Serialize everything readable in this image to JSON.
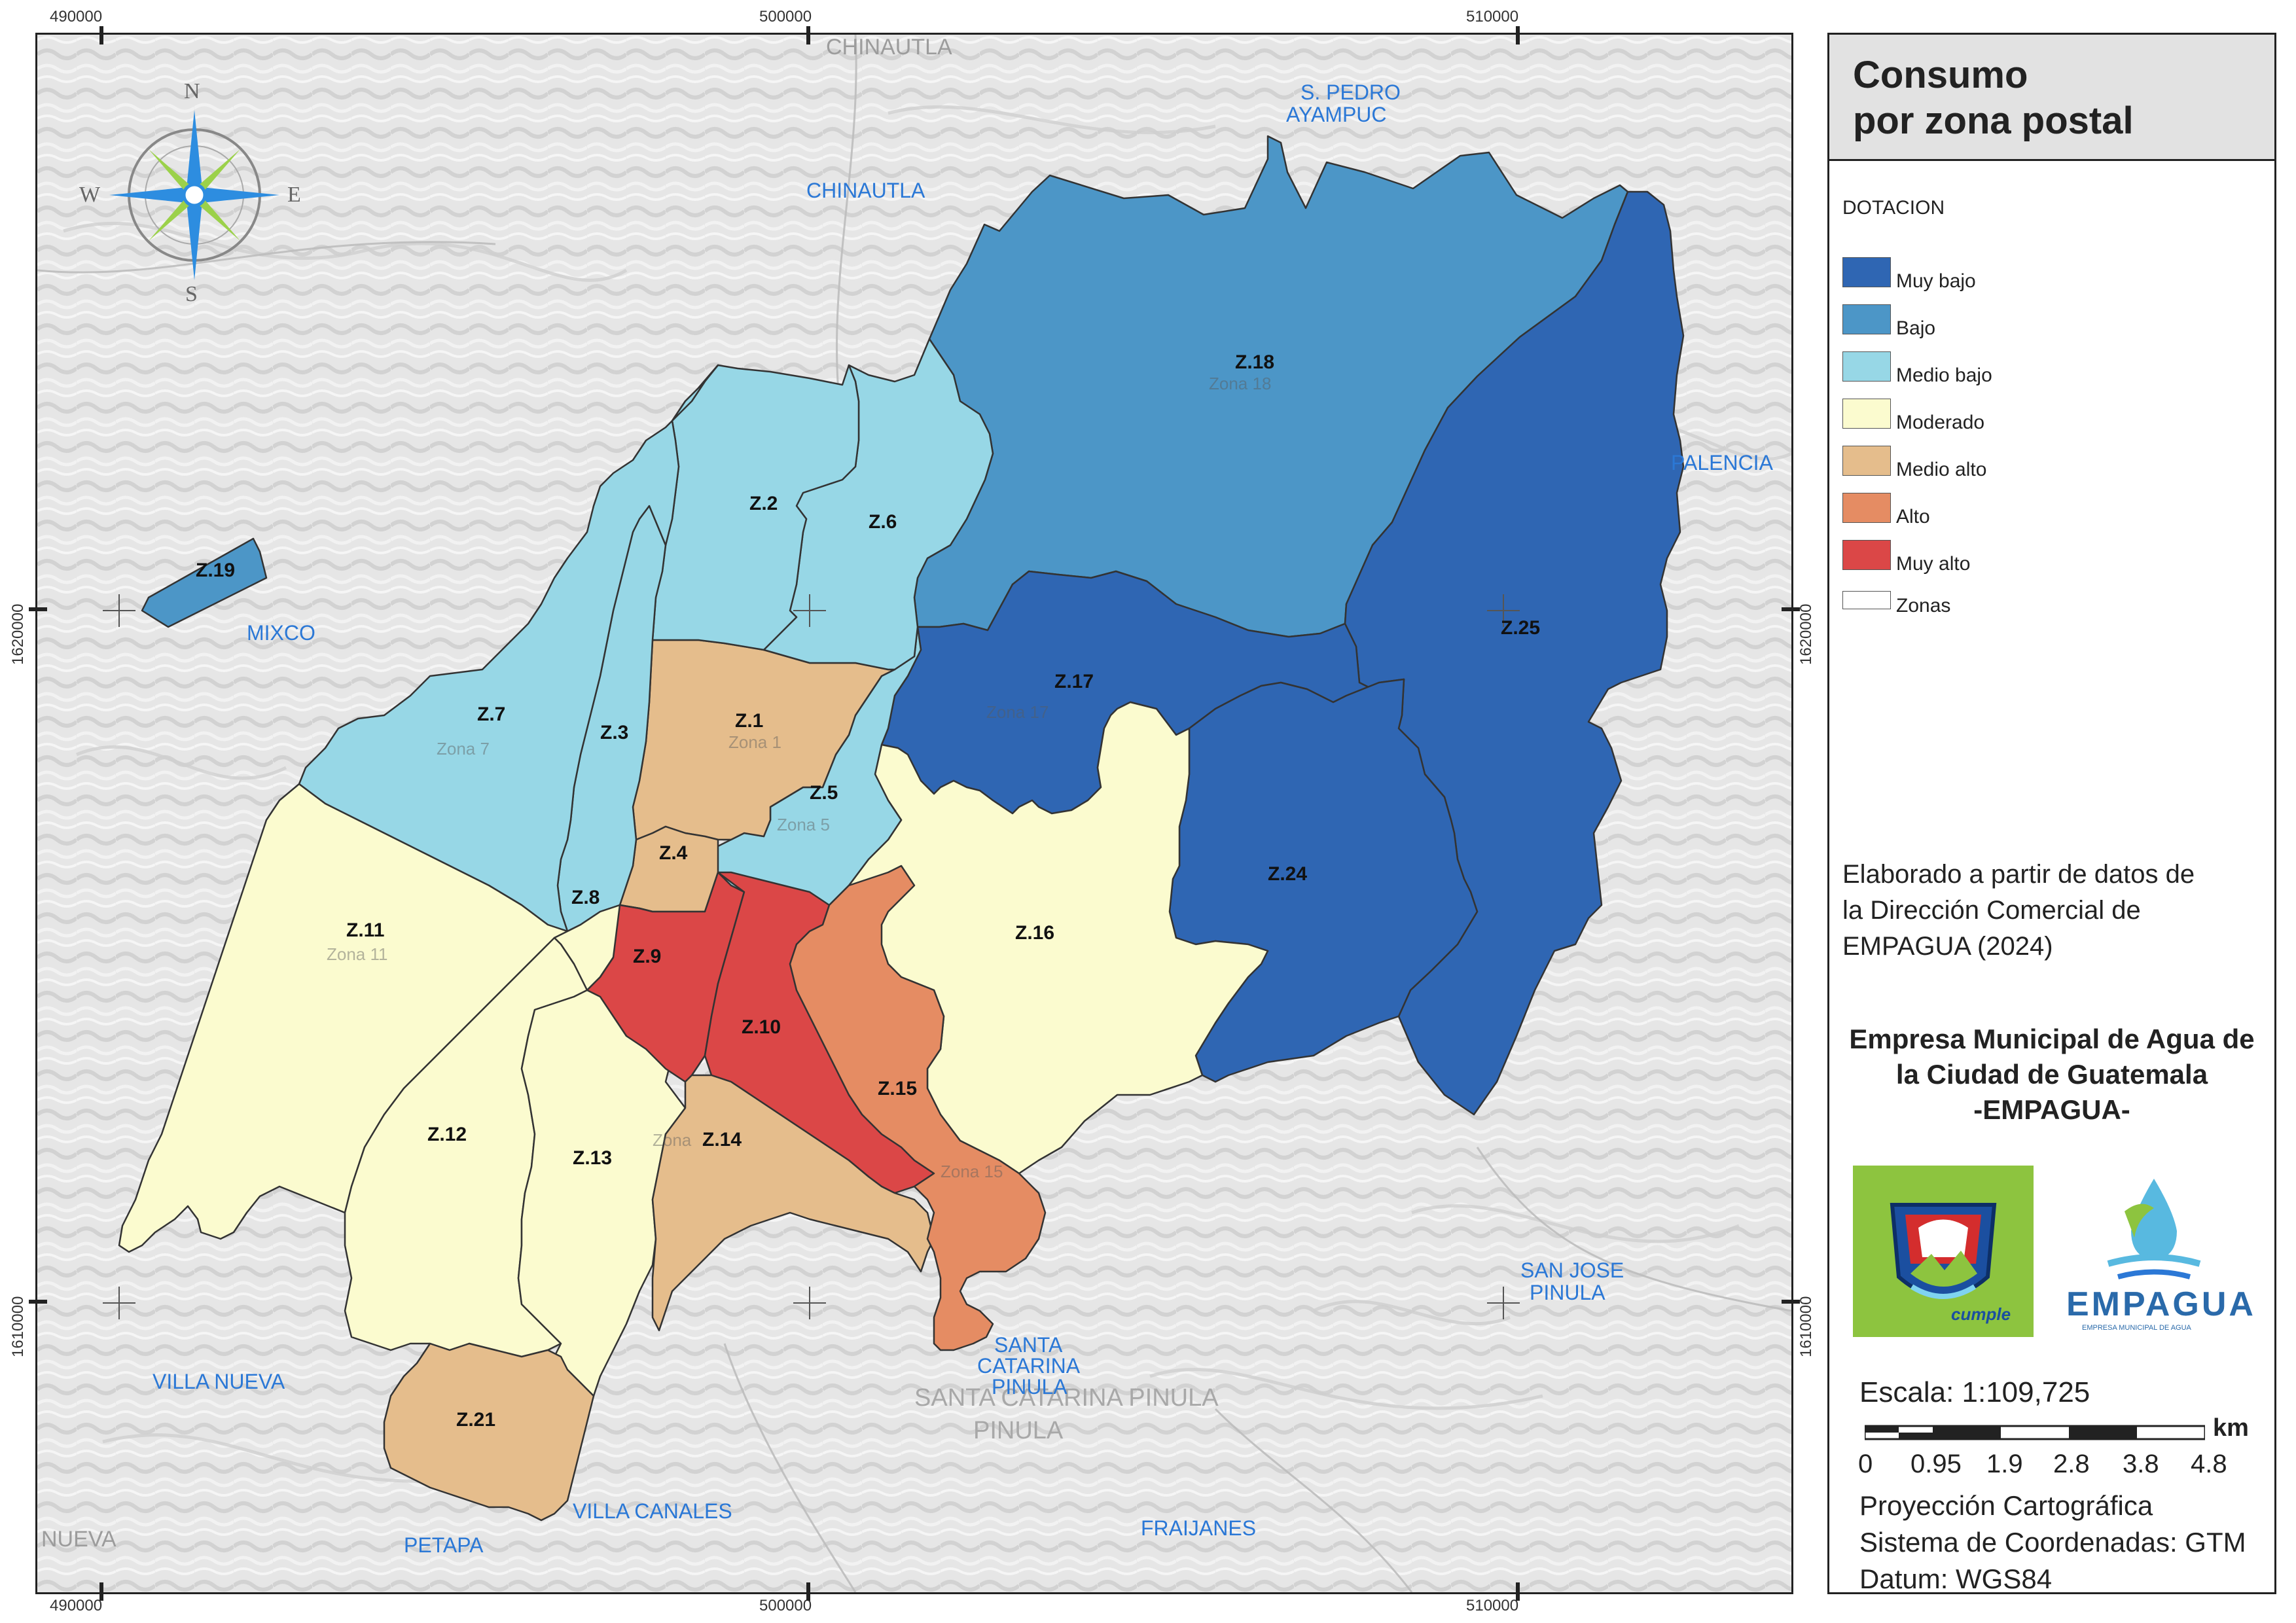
{
  "map": {
    "coords_top": [
      "490000",
      "500000",
      "510000"
    ],
    "coords_bottom": [
      "490000",
      "500000",
      "510000"
    ],
    "coords_left": [
      "1620000",
      "1610000"
    ],
    "coords_right": [
      "1620000",
      "1610000"
    ],
    "compass": [
      "N",
      "E",
      "S",
      "W"
    ],
    "zones": [
      {
        "label": "Z.1",
        "ghost": "Zona 1",
        "class": "Medio alto"
      },
      {
        "label": "Z.2",
        "ghost": "",
        "class": "Medio bajo"
      },
      {
        "label": "Z.3",
        "ghost": "",
        "class": "Medio bajo"
      },
      {
        "label": "Z.4",
        "ghost": "",
        "class": "Medio alto"
      },
      {
        "label": "Z.5",
        "ghost": "Zona 5",
        "class": "Medio bajo"
      },
      {
        "label": "Z.6",
        "ghost": "",
        "class": "Medio bajo"
      },
      {
        "label": "Z.7",
        "ghost": "Zona 7",
        "class": "Medio bajo"
      },
      {
        "label": "Z.8",
        "ghost": "",
        "class": "Moderado"
      },
      {
        "label": "Z.9",
        "ghost": "",
        "class": "Muy alto"
      },
      {
        "label": "Z.10",
        "ghost": "",
        "class": "Muy alto"
      },
      {
        "label": "Z.11",
        "ghost": "Zona 11",
        "class": "Moderado"
      },
      {
        "label": "Z.12",
        "ghost": "",
        "class": "Moderado"
      },
      {
        "label": "Z.13",
        "ghost": "",
        "class": "Moderado"
      },
      {
        "label": "Z.14",
        "ghost": "Zona",
        "class": "Medio alto"
      },
      {
        "label": "Z.15",
        "ghost": "Zona 15",
        "class": "Alto"
      },
      {
        "label": "Z.16",
        "ghost": "",
        "class": "Moderado"
      },
      {
        "label": "Z.17",
        "ghost": "Zona 17",
        "class": "Muy bajo"
      },
      {
        "label": "Z.18",
        "ghost": "Zona 18",
        "class": "Bajo"
      },
      {
        "label": "Z.19",
        "ghost": "",
        "class": "Bajo"
      },
      {
        "label": "Z.21",
        "ghost": "",
        "class": "Medio alto"
      },
      {
        "label": "Z.24",
        "ghost": "",
        "class": "Muy bajo"
      },
      {
        "label": "Z.25",
        "ghost": "",
        "class": "Muy bajo"
      }
    ],
    "places": {
      "chinautla_top": "CHINAUTLA",
      "chinautla": "CHINAUTLA",
      "san_pedro": [
        "S. PEDRO",
        "AYAMPUC"
      ],
      "palencia": "PALENCIA",
      "mixco": "MIXCO",
      "villa_nueva": "VILLA NUEVA",
      "nueva_edge": "NUEVA",
      "petapa": "PETAPA",
      "villa_canales": "VILLA CANALES",
      "fraijanes": "FRAIJANES",
      "santa_catarina": [
        "SANTA",
        "CATARINA",
        "PINULA"
      ],
      "santa_catarina_ghost": [
        "SANTA CATARINA PINULA",
        "PINULA"
      ],
      "san_jose": [
        "SAN JOSE",
        "PINULA"
      ]
    }
  },
  "legend": {
    "title": [
      "Consumo",
      "por zona postal"
    ],
    "subtitle": "DOTACION",
    "items": [
      {
        "label": "Muy bajo",
        "color": "#2f66b3"
      },
      {
        "label": "Bajo",
        "color": "#4c96c7"
      },
      {
        "label": "Medio bajo",
        "color": "#97d7e6"
      },
      {
        "label": "Moderado",
        "color": "#fbfbcf"
      },
      {
        "label": "Medio alto",
        "color": "#e5bd8c"
      },
      {
        "label": "Alto",
        "color": "#e58c63"
      },
      {
        "label": "Muy alto",
        "color": "#db4747"
      },
      {
        "label": "Zonas",
        "color": "#ffffff"
      }
    ],
    "source_note": [
      "Elaborado a partir de datos de",
      "la Dirección Comercial de",
      "EMPAGUA (2024)"
    ],
    "org": [
      "Empresa Municipal de Agua de",
      "la Ciudad de Guatemala",
      "-EMPAGUA-"
    ],
    "logo_muni_text": "cumple",
    "logo_empagua_text": "EMPAGUA",
    "logo_empagua_sub": "EMPRESA MUNICIPAL DE AGUA",
    "scale": "Escala: 1:109,725",
    "scale_unit": "km",
    "scale_ticks": [
      "0",
      "0.95",
      "1.9",
      "2.8",
      "3.8",
      "4.8"
    ],
    "projection": [
      "Proyección Cartográfica",
      "Sistema de Coordenadas: GTM",
      "Datum: WGS84"
    ]
  }
}
